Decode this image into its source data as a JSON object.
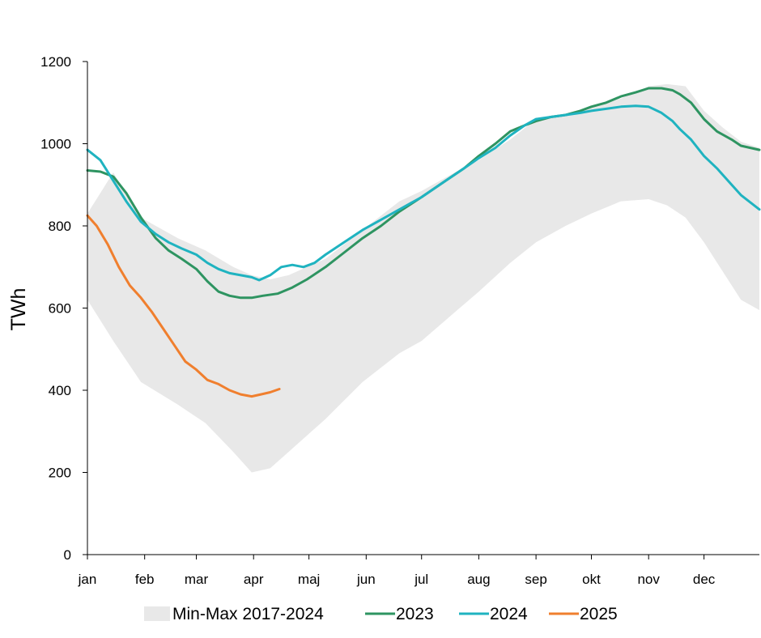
{
  "chart_data": {
    "type": "line",
    "ylabel": "TWh",
    "xlabel": "",
    "title": "",
    "ylim": [
      0,
      1200
    ],
    "yticks": [
      0,
      200,
      400,
      600,
      800,
      1000,
      1200
    ],
    "xlim": [
      1,
      365
    ],
    "month_ticks": [
      {
        "label": "jan",
        "day": 1
      },
      {
        "label": "feb",
        "day": 32
      },
      {
        "label": "mar",
        "day": 60
      },
      {
        "label": "apr",
        "day": 91
      },
      {
        "label": "maj",
        "day": 121
      },
      {
        "label": "jun",
        "day": 152
      },
      {
        "label": "jul",
        "day": 182
      },
      {
        "label": "aug",
        "day": 213
      },
      {
        "label": "sep",
        "day": 244
      },
      {
        "label": "okt",
        "day": 274
      },
      {
        "label": "nov",
        "day": 305
      },
      {
        "label": "dec",
        "day": 335
      }
    ],
    "grid": false,
    "legend_position": "bottom",
    "band": {
      "name": "Min-Max 2017-2024",
      "color": "#e8e8e8",
      "x": [
        1,
        15,
        30,
        50,
        65,
        80,
        90,
        100,
        110,
        130,
        150,
        170,
        182,
        200,
        213,
        230,
        244,
        260,
        274,
        290,
        305,
        315,
        325,
        335,
        345,
        355,
        365
      ],
      "max": [
        830,
        930,
        820,
        770,
        740,
        700,
        680,
        670,
        680,
        720,
        790,
        860,
        885,
        930,
        960,
        1010,
        1060,
        1070,
        1090,
        1110,
        1140,
        1145,
        1140,
        1080,
        1040,
        1005,
        990
      ],
      "min": [
        620,
        520,
        420,
        365,
        320,
        250,
        200,
        210,
        250,
        330,
        420,
        490,
        520,
        590,
        640,
        710,
        760,
        800,
        830,
        860,
        865,
        850,
        820,
        760,
        690,
        620,
        595
      ]
    },
    "series": [
      {
        "name": "2023",
        "color": "#2e9461",
        "x": [
          1,
          8,
          15,
          22,
          30,
          38,
          45,
          52,
          60,
          66,
          72,
          78,
          84,
          90,
          96,
          104,
          112,
          120,
          130,
          140,
          150,
          160,
          170,
          182,
          195,
          205,
          213,
          222,
          230,
          238,
          244,
          252,
          260,
          268,
          274,
          282,
          290,
          298,
          305,
          312,
          318,
          322,
          328,
          335,
          342,
          350,
          355,
          365
        ],
        "values": [
          935,
          932,
          920,
          880,
          820,
          770,
          740,
          720,
          695,
          665,
          640,
          630,
          625,
          625,
          630,
          635,
          650,
          670,
          700,
          735,
          770,
          800,
          835,
          870,
          910,
          940,
          970,
          1000,
          1030,
          1045,
          1055,
          1065,
          1070,
          1080,
          1090,
          1100,
          1115,
          1125,
          1135,
          1135,
          1130,
          1120,
          1100,
          1060,
          1030,
          1010,
          995,
          985
        ]
      },
      {
        "name": "2024",
        "color": "#1fb3c0",
        "x": [
          1,
          8,
          15,
          22,
          30,
          38,
          45,
          52,
          60,
          66,
          72,
          78,
          84,
          90,
          94,
          100,
          106,
          112,
          118,
          124,
          130,
          140,
          150,
          160,
          170,
          182,
          195,
          205,
          213,
          222,
          230,
          238,
          244,
          252,
          260,
          268,
          274,
          282,
          290,
          298,
          305,
          312,
          318,
          322,
          328,
          335,
          342,
          350,
          355,
          365
        ],
        "values": [
          985,
          960,
          910,
          860,
          810,
          780,
          760,
          745,
          730,
          710,
          695,
          685,
          680,
          675,
          668,
          680,
          700,
          705,
          700,
          710,
          730,
          760,
          790,
          815,
          840,
          870,
          910,
          940,
          965,
          990,
          1020,
          1045,
          1060,
          1065,
          1070,
          1075,
          1080,
          1085,
          1090,
          1092,
          1090,
          1075,
          1055,
          1035,
          1010,
          970,
          940,
          900,
          875,
          840
        ]
      },
      {
        "name": "2025",
        "color": "#f07f2e",
        "x": [
          1,
          6,
          12,
          18,
          24,
          30,
          36,
          42,
          48,
          54,
          60,
          66,
          72,
          78,
          84,
          90,
          95,
          100,
          105
        ],
        "values": [
          825,
          800,
          755,
          700,
          655,
          625,
          590,
          550,
          510,
          470,
          450,
          425,
          415,
          400,
          390,
          385,
          390,
          395,
          403
        ]
      }
    ]
  }
}
